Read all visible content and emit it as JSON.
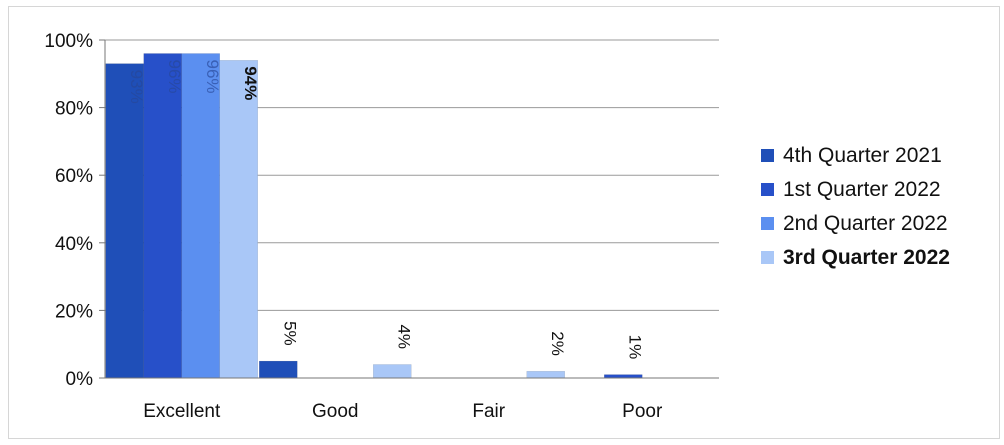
{
  "chart_data": {
    "type": "bar",
    "categories": [
      "Excellent",
      "Good",
      "Fair",
      "Poor"
    ],
    "series": [
      {
        "name": "4th Quarter 2021",
        "color": "#1f4fb8",
        "values": [
          93,
          5,
          0,
          0
        ],
        "labels": [
          "93%",
          "5%",
          "",
          ""
        ]
      },
      {
        "name": "1st Quarter 2022",
        "color": "#2750c9",
        "values": [
          96,
          0,
          0,
          1
        ],
        "labels": [
          "96%",
          "",
          "",
          "1%"
        ]
      },
      {
        "name": "2nd Quarter 2022",
        "color": "#5b8ff0",
        "values": [
          96,
          0,
          0,
          0
        ],
        "labels": [
          "96%",
          "",
          "",
          ""
        ]
      },
      {
        "name": "3rd Quarter 2022",
        "color": "#a9c7f7",
        "values": [
          94,
          4,
          2,
          0
        ],
        "labels": [
          "94%",
          "4%",
          "2%",
          ""
        ]
      }
    ],
    "ytick_labels": [
      "0%",
      "20%",
      "40%",
      "60%",
      "80%",
      "100%"
    ],
    "ylim": [
      0,
      100
    ],
    "grid": true,
    "legend_position": "right",
    "title": "",
    "xlabel": "",
    "ylabel": ""
  }
}
